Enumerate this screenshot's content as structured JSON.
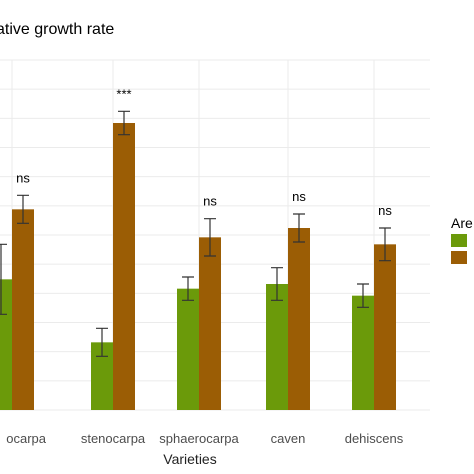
{
  "chart_data": {
    "type": "bar",
    "title": "ative growth rate",
    "xlabel": "Varieties",
    "ylabel": "",
    "categories": [
      "ocarpa",
      "stenocarpa",
      "sphaerocarpa",
      "caven",
      "dehiscens"
    ],
    "category_labels": [
      "ocarpa",
      "stenocarpa",
      "sphaerocarpa",
      "caven",
      "dehiscens"
    ],
    "ylim": [
      0,
      1.5
    ],
    "grid": true,
    "series": [
      {
        "name": "",
        "color": "#6b9a0a",
        "values": [
          0.56,
          0.29,
          0.52,
          0.54,
          0.49
        ],
        "error": [
          0.15,
          0.06,
          0.05,
          0.07,
          0.05
        ]
      },
      {
        "name": "",
        "color": "#9b5d05",
        "values": [
          0.86,
          1.23,
          0.74,
          0.78,
          0.71
        ],
        "error": [
          0.06,
          0.05,
          0.08,
          0.06,
          0.07
        ]
      }
    ],
    "significance": [
      "ns",
      "***",
      "ns",
      "ns",
      "ns"
    ],
    "legend": {
      "title": "Are",
      "placement": "right",
      "colors": [
        "#6b9a0a",
        "#9b5d05"
      ]
    }
  }
}
